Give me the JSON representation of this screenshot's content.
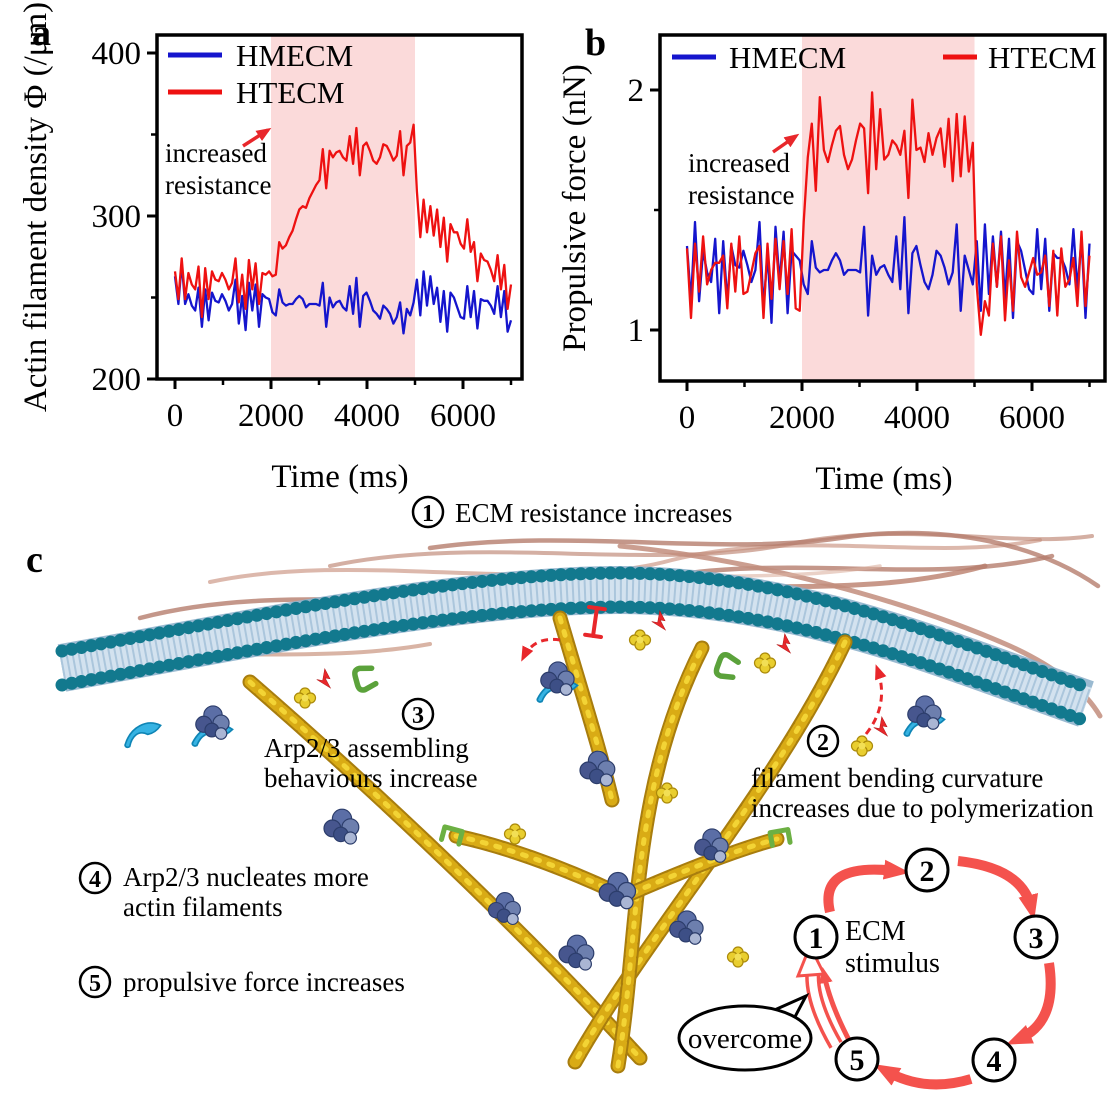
{
  "panels": {
    "a": "a",
    "b": "b",
    "c": "c"
  },
  "chart_data": [
    {
      "id": "a",
      "type": "line",
      "title": "",
      "xlabel": "Time (ms)",
      "ylabel": "Actin filament density Φ (/μm)",
      "xlim": [
        -375,
        7230
      ],
      "ylim": [
        200,
        411
      ],
      "grid": false,
      "legend_position": "top-left-inside",
      "x_ticks_major": [
        0,
        2000,
        4000,
        6000
      ],
      "x_ticks_minor": [
        1000,
        3000,
        5000,
        7000
      ],
      "y_ticks_major": [
        200,
        300,
        400
      ],
      "y_ticks_minor": [
        250,
        350
      ],
      "highlight_band": {
        "x_from": 2000,
        "x_to": 5000,
        "color": "#fbdada"
      },
      "annotation": {
        "lines": [
          "increased",
          "resistance"
        ],
        "color": "#000000"
      },
      "legend": [
        {
          "name": "HMECM",
          "color": "#1515cd"
        },
        {
          "name": "HTECM",
          "color": "#ee1111"
        }
      ],
      "x_start": 0,
      "x_step": 70,
      "series": [
        {
          "name": "HMECM",
          "color": "#1515cd",
          "values": [
            263,
            246,
            271,
            246,
            252,
            245,
            242,
            256,
            232,
            255,
            236,
            253,
            248,
            247,
            252,
            248,
            242,
            246,
            261,
            234,
            251,
            230,
            259,
            242,
            258,
            232,
            252,
            250,
            249,
            241,
            239,
            255,
            247,
            245,
            246,
            246,
            249,
            251,
            249,
            244,
            246,
            246,
            246,
            245,
            259,
            232,
            250,
            244,
            247,
            248,
            244,
            242,
            257,
            240,
            262,
            232,
            251,
            253,
            248,
            242,
            240,
            237,
            245,
            243,
            240,
            234,
            238,
            247,
            228,
            243,
            239,
            247,
            261,
            239,
            266,
            245,
            263,
            246,
            256,
            235,
            254,
            229,
            253,
            250,
            244,
            238,
            237,
            257,
            238,
            254,
            231,
            249,
            248,
            248,
            245,
            240,
            257,
            238,
            254,
            229,
            236
          ]
        },
        {
          "name": "HTECM",
          "color": "#ee1111",
          "values": [
            266,
            249,
            274,
            249,
            265,
            258,
            255,
            269,
            238,
            268,
            249,
            266,
            261,
            260,
            265,
            261,
            255,
            259,
            274,
            247,
            264,
            243,
            273,
            255,
            271,
            246,
            265,
            264,
            266,
            263,
            264,
            284,
            280,
            282,
            287,
            291,
            298,
            304,
            306,
            305,
            311,
            315,
            319,
            322,
            341,
            317,
            340,
            336,
            339,
            340,
            336,
            334,
            349,
            332,
            354,
            325,
            343,
            345,
            340,
            334,
            332,
            336,
            344,
            343,
            339,
            334,
            337,
            352,
            325,
            343,
            345,
            356,
            315,
            287,
            310,
            290,
            306,
            288,
            304,
            281,
            299,
            272,
            295,
            290,
            290,
            283,
            280,
            298,
            278,
            284,
            260,
            277,
            273,
            272,
            267,
            260,
            276,
            255,
            270,
            243,
            258
          ]
        }
      ]
    },
    {
      "id": "b",
      "type": "line",
      "title": "",
      "xlabel": "Time (ms)",
      "ylabel": "Propulsive force (nN)",
      "xlim": [
        -470,
        7300
      ],
      "ylim": [
        0.79,
        2.23
      ],
      "grid": false,
      "legend_position": "top-inside-left-and-right",
      "x_ticks_major": [
        0,
        2000,
        4000,
        6000
      ],
      "x_ticks_minor": [
        1000,
        3000,
        5000,
        7000
      ],
      "y_ticks_major": [
        1,
        2
      ],
      "y_ticks_minor": [
        1.5
      ],
      "highlight_band": {
        "x_from": 2000,
        "x_to": 5000,
        "color": "#fbdada"
      },
      "annotation": {
        "lines": [
          "increased",
          "resistance"
        ],
        "color": "#000000"
      },
      "legend": [
        {
          "name": "HMECM",
          "color": "#1515cd"
        },
        {
          "name": "HTECM",
          "color": "#ee1111"
        }
      ],
      "x_start": 0,
      "x_step": 70,
      "series": [
        {
          "name": "HMECM",
          "color": "#1515cd",
          "values": [
            1.35,
            1.12,
            1.45,
            1.12,
            1.33,
            1.24,
            1.2,
            1.38,
            1.07,
            1.37,
            1.12,
            1.35,
            1.27,
            1.26,
            1.33,
            1.27,
            1.2,
            1.25,
            1.45,
            1.09,
            1.32,
            1.03,
            1.43,
            1.2,
            1.41,
            1.07,
            1.33,
            1.31,
            1.29,
            1.19,
            1.15,
            1.37,
            1.26,
            1.24,
            1.25,
            1.25,
            1.29,
            1.32,
            1.29,
            1.23,
            1.25,
            1.25,
            1.25,
            1.24,
            1.43,
            1.06,
            1.31,
            1.23,
            1.26,
            1.27,
            1.23,
            1.2,
            1.39,
            1.17,
            1.47,
            1.07,
            1.32,
            1.35,
            1.27,
            1.2,
            1.17,
            1.23,
            1.33,
            1.31,
            1.26,
            1.19,
            1.24,
            1.44,
            1.08,
            1.31,
            1.25,
            1.19,
            1.37,
            1.08,
            1.44,
            1.15,
            1.39,
            1.18,
            1.41,
            1.13,
            1.38,
            1.05,
            1.37,
            1.33,
            1.25,
            1.17,
            1.15,
            1.42,
            1.17,
            1.38,
            1.08,
            1.32,
            1.3,
            1.3,
            1.26,
            1.19,
            1.42,
            1.17,
            1.38,
            1.05,
            1.36
          ]
        },
        {
          "name": "HTECM",
          "color": "#ee1111",
          "values": [
            1.34,
            1.05,
            1.36,
            1.16,
            1.39,
            1.19,
            1.25,
            1.28,
            1.28,
            1.31,
            1.09,
            1.36,
            1.16,
            1.39,
            1.15,
            1.16,
            1.24,
            1.32,
            1.35,
            1.05,
            1.36,
            1.13,
            1.38,
            1.17,
            1.37,
            1.15,
            1.42,
            1.09,
            1.08,
            1.45,
            1.72,
            1.86,
            1.58,
            1.97,
            1.75,
            1.7,
            1.77,
            1.83,
            1.85,
            1.73,
            1.67,
            1.71,
            1.79,
            1.86,
            1.84,
            1.57,
            1.99,
            1.67,
            1.92,
            1.71,
            1.73,
            1.79,
            1.77,
            1.73,
            1.83,
            1.55,
            1.96,
            1.75,
            1.76,
            1.7,
            1.82,
            1.73,
            1.8,
            1.84,
            1.68,
            1.88,
            1.62,
            1.9,
            1.64,
            1.89,
            1.66,
            1.78,
            1.18,
            0.98,
            1.12,
            1.06,
            1.36,
            1.18,
            1.39,
            1.04,
            1.29,
            1.08,
            1.41,
            1.22,
            1.18,
            1.24,
            1.3,
            1.23,
            1.24,
            1.31,
            1.1,
            1.33,
            1.06,
            1.34,
            1.18,
            1.21,
            1.3,
            1.1,
            1.41,
            1.1,
            1.31
          ]
        }
      ]
    }
  ],
  "panel_c": {
    "steps": [
      {
        "num": "1",
        "lines": [
          "ECM resistance increases"
        ]
      },
      {
        "num": "2",
        "lines": [
          "filament bending curvature",
          "increases due to polymerization"
        ]
      },
      {
        "num": "3",
        "lines": [
          "Arp2/3 assembling",
          "behaviours increase"
        ]
      },
      {
        "num": "4",
        "lines": [
          "Arp2/3 nucleates more",
          "actin filaments"
        ]
      },
      {
        "num": "5",
        "lines": [
          "propulsive force increases"
        ]
      }
    ],
    "cycle": {
      "nodes": [
        "1",
        "2",
        "3",
        "4",
        "5"
      ],
      "hub_lines": [
        "ECM",
        "stimulus"
      ],
      "bubble_text": "overcome",
      "bubble_text_color": "#e02020",
      "arrow_color": "#f4524d"
    },
    "illustration_colors": {
      "membrane_bead": "#12798e",
      "membrane_body": "#d3e2ef",
      "actin_filament": "#d9ab15",
      "arp23_complex": "#5b6ea6",
      "actin_monomer": "#e9ce2f",
      "crescent_protein": "#36b3e3",
      "capping_protein": "#6cb043",
      "ecm_fiber": "#c28d7c",
      "signal": "#e8272b"
    }
  }
}
